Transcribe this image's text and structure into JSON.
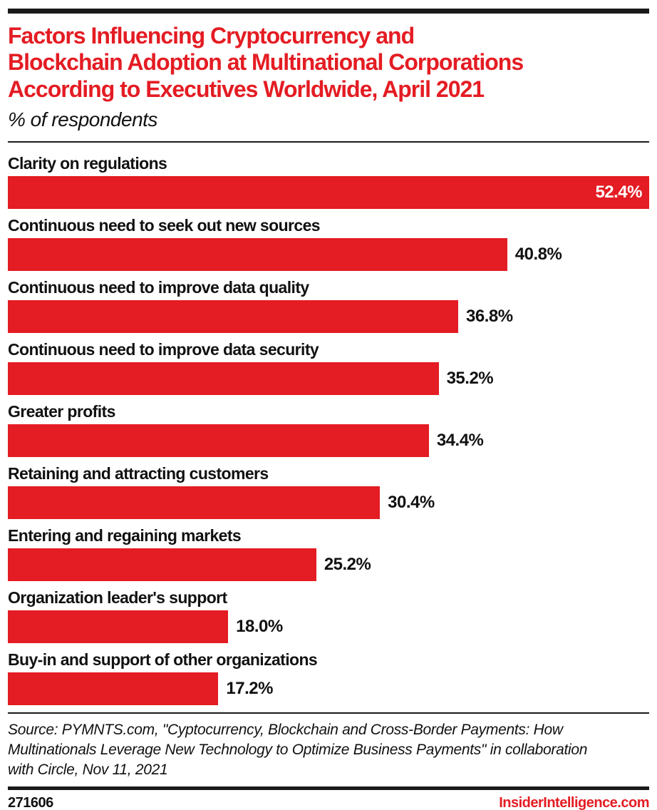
{
  "page": {
    "title_lines": [
      "Factors Influencing Cryptocurrency and",
      "Blockchain Adoption at Multinational Corporations",
      "According to Executives Worldwide, April 2021"
    ],
    "subtitle": "% of respondents",
    "source_lines": [
      "Source: PYMNTS.com, \"Cyptocurrency, Blockchain and Cross-Border Payments: How",
      "Multinationals Leverage New Technology to Optimize Business Payments\" in collaboration",
      "with Circle, Nov 11, 2021"
    ],
    "footer": {
      "chart_id": "271606",
      "brand": "InsiderIntelligence.com"
    }
  },
  "colors": {
    "accent_red": "#e41c23",
    "text_black": "#111111",
    "rule_black": "#1a1a1a",
    "value_inside_white": "#ffffff"
  },
  "chart_data": {
    "type": "bar",
    "orientation": "horizontal",
    "title": "Factors Influencing Cryptocurrency and Blockchain Adoption at Multinational Corporations According to Executives Worldwide, April 2021",
    "subtitle": "% of respondents",
    "categories": [
      "Clarity on regulations",
      "Continuous need to seek out new sources",
      "Continuous need to improve data quality",
      "Continuous need to improve data security",
      "Greater profits",
      "Retaining and attracting customers",
      "Entering and regaining markets",
      "Organization leader's support",
      "Buy-in and support of other organizations"
    ],
    "values": [
      52.4,
      40.8,
      36.8,
      35.2,
      34.4,
      30.4,
      25.2,
      18.0,
      17.2
    ],
    "display_values": [
      "52.4%",
      "40.8%",
      "36.8%",
      "35.2%",
      "34.4%",
      "30.4%",
      "25.2%",
      "18.0%",
      "17.2%"
    ],
    "value_label_inside": [
      true,
      false,
      false,
      false,
      false,
      false,
      false,
      false,
      false
    ],
    "xlim": [
      0,
      52.4
    ],
    "bar_color": "#e41c23",
    "grid": false,
    "legend": false
  }
}
